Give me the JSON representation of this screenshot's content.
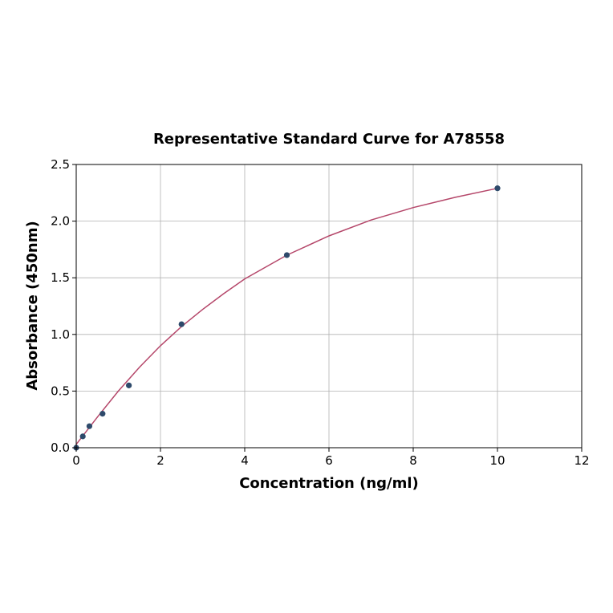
{
  "chart_data": {
    "type": "scatter",
    "title": "Representative Standard Curve for A78558",
    "xlabel": "Concentration (ng/ml)",
    "ylabel": "Absorbance (450nm)",
    "xlim": [
      0,
      12
    ],
    "ylim": [
      0,
      2.5
    ],
    "xticks": [
      "0",
      "2",
      "4",
      "6",
      "8",
      "10",
      "12"
    ],
    "yticks": [
      "0.0",
      "0.5",
      "1.0",
      "1.5",
      "2.0",
      "2.5"
    ],
    "grid": true,
    "points": {
      "x": [
        0,
        0.156,
        0.3125,
        0.625,
        1.25,
        2.5,
        5,
        10
      ],
      "y": [
        0.0,
        0.1,
        0.19,
        0.3,
        0.55,
        1.09,
        1.7,
        2.29
      ],
      "color": "#2e4a6b"
    },
    "fit_curve": {
      "x": [
        0,
        0.5,
        1,
        1.5,
        2,
        2.5,
        3,
        3.5,
        4,
        5,
        6,
        7,
        8,
        9,
        10
      ],
      "y": [
        0.03,
        0.27,
        0.5,
        0.71,
        0.9,
        1.07,
        1.22,
        1.36,
        1.49,
        1.7,
        1.87,
        2.01,
        2.12,
        2.21,
        2.29
      ],
      "color": "#b5476a"
    }
  }
}
